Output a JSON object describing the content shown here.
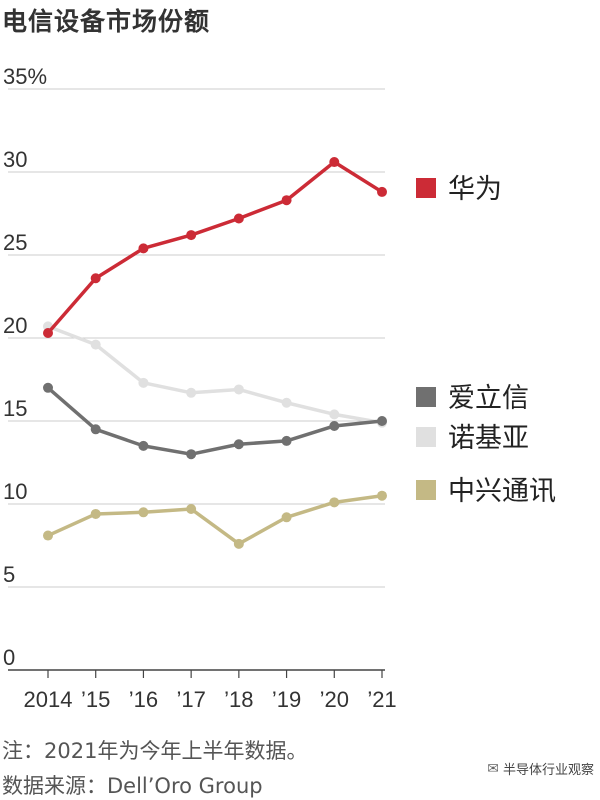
{
  "chart_data": {
    "type": "line",
    "title": "电信设备市场份额",
    "x": [
      "2014",
      "’15",
      "’16",
      "’17",
      "’18",
      "’19",
      "’20",
      "’21"
    ],
    "ylim": [
      0,
      35
    ],
    "yticks": [
      "0",
      "5",
      "10",
      "15",
      "20",
      "25",
      "30",
      "35%"
    ],
    "grid": true,
    "legend_placement": "right",
    "series": [
      {
        "name": "华为",
        "color": "#cc2b36",
        "values": [
          20.3,
          23.6,
          25.4,
          26.2,
          27.2,
          28.3,
          30.6,
          28.8
        ]
      },
      {
        "name": "爱立信",
        "color": "#707070",
        "values": [
          17.0,
          14.5,
          13.5,
          13.0,
          13.6,
          13.8,
          14.7,
          15.0
        ]
      },
      {
        "name": "诺基亚",
        "color": "#e0e0e0",
        "values": [
          20.7,
          19.6,
          17.3,
          16.7,
          16.9,
          16.1,
          15.4,
          14.9
        ]
      },
      {
        "name": "中兴通讯",
        "color": "#c4b985",
        "values": [
          8.1,
          9.4,
          9.5,
          9.7,
          7.6,
          9.2,
          10.1,
          10.5
        ]
      }
    ]
  },
  "notes": {
    "line1": "注：2021年为今年上半年数据。",
    "line2": "数据来源：Dell’Oro Group"
  },
  "watermark": {
    "icon": "wechat-icon",
    "text": "半导体行业观察"
  }
}
